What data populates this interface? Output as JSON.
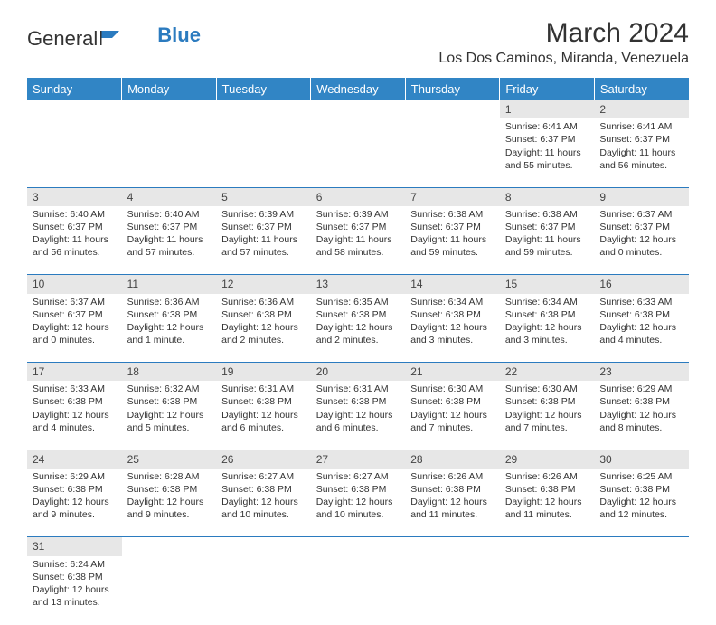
{
  "logo": {
    "part1": "General",
    "part2": "Blue"
  },
  "title": "March 2024",
  "location": "Los Dos Caminos, Miranda, Venezuela",
  "header_bg": "#3185c5",
  "header_fg": "#ffffff",
  "day_bg": "#e7e7e7",
  "border_color": "#2b7bbf",
  "days": [
    "Sunday",
    "Monday",
    "Tuesday",
    "Wednesday",
    "Thursday",
    "Friday",
    "Saturday"
  ],
  "weeks": [
    {
      "nums": [
        "",
        "",
        "",
        "",
        "",
        "1",
        "2"
      ],
      "cells": [
        null,
        null,
        null,
        null,
        null,
        {
          "sr": "Sunrise: 6:41 AM",
          "ss": "Sunset: 6:37 PM",
          "dl": "Daylight: 11 hours and 55 minutes."
        },
        {
          "sr": "Sunrise: 6:41 AM",
          "ss": "Sunset: 6:37 PM",
          "dl": "Daylight: 11 hours and 56 minutes."
        }
      ]
    },
    {
      "nums": [
        "3",
        "4",
        "5",
        "6",
        "7",
        "8",
        "9"
      ],
      "cells": [
        {
          "sr": "Sunrise: 6:40 AM",
          "ss": "Sunset: 6:37 PM",
          "dl": "Daylight: 11 hours and 56 minutes."
        },
        {
          "sr": "Sunrise: 6:40 AM",
          "ss": "Sunset: 6:37 PM",
          "dl": "Daylight: 11 hours and 57 minutes."
        },
        {
          "sr": "Sunrise: 6:39 AM",
          "ss": "Sunset: 6:37 PM",
          "dl": "Daylight: 11 hours and 57 minutes."
        },
        {
          "sr": "Sunrise: 6:39 AM",
          "ss": "Sunset: 6:37 PM",
          "dl": "Daylight: 11 hours and 58 minutes."
        },
        {
          "sr": "Sunrise: 6:38 AM",
          "ss": "Sunset: 6:37 PM",
          "dl": "Daylight: 11 hours and 59 minutes."
        },
        {
          "sr": "Sunrise: 6:38 AM",
          "ss": "Sunset: 6:37 PM",
          "dl": "Daylight: 11 hours and 59 minutes."
        },
        {
          "sr": "Sunrise: 6:37 AM",
          "ss": "Sunset: 6:37 PM",
          "dl": "Daylight: 12 hours and 0 minutes."
        }
      ]
    },
    {
      "nums": [
        "10",
        "11",
        "12",
        "13",
        "14",
        "15",
        "16"
      ],
      "cells": [
        {
          "sr": "Sunrise: 6:37 AM",
          "ss": "Sunset: 6:37 PM",
          "dl": "Daylight: 12 hours and 0 minutes."
        },
        {
          "sr": "Sunrise: 6:36 AM",
          "ss": "Sunset: 6:38 PM",
          "dl": "Daylight: 12 hours and 1 minute."
        },
        {
          "sr": "Sunrise: 6:36 AM",
          "ss": "Sunset: 6:38 PM",
          "dl": "Daylight: 12 hours and 2 minutes."
        },
        {
          "sr": "Sunrise: 6:35 AM",
          "ss": "Sunset: 6:38 PM",
          "dl": "Daylight: 12 hours and 2 minutes."
        },
        {
          "sr": "Sunrise: 6:34 AM",
          "ss": "Sunset: 6:38 PM",
          "dl": "Daylight: 12 hours and 3 minutes."
        },
        {
          "sr": "Sunrise: 6:34 AM",
          "ss": "Sunset: 6:38 PM",
          "dl": "Daylight: 12 hours and 3 minutes."
        },
        {
          "sr": "Sunrise: 6:33 AM",
          "ss": "Sunset: 6:38 PM",
          "dl": "Daylight: 12 hours and 4 minutes."
        }
      ]
    },
    {
      "nums": [
        "17",
        "18",
        "19",
        "20",
        "21",
        "22",
        "23"
      ],
      "cells": [
        {
          "sr": "Sunrise: 6:33 AM",
          "ss": "Sunset: 6:38 PM",
          "dl": "Daylight: 12 hours and 4 minutes."
        },
        {
          "sr": "Sunrise: 6:32 AM",
          "ss": "Sunset: 6:38 PM",
          "dl": "Daylight: 12 hours and 5 minutes."
        },
        {
          "sr": "Sunrise: 6:31 AM",
          "ss": "Sunset: 6:38 PM",
          "dl": "Daylight: 12 hours and 6 minutes."
        },
        {
          "sr": "Sunrise: 6:31 AM",
          "ss": "Sunset: 6:38 PM",
          "dl": "Daylight: 12 hours and 6 minutes."
        },
        {
          "sr": "Sunrise: 6:30 AM",
          "ss": "Sunset: 6:38 PM",
          "dl": "Daylight: 12 hours and 7 minutes."
        },
        {
          "sr": "Sunrise: 6:30 AM",
          "ss": "Sunset: 6:38 PM",
          "dl": "Daylight: 12 hours and 7 minutes."
        },
        {
          "sr": "Sunrise: 6:29 AM",
          "ss": "Sunset: 6:38 PM",
          "dl": "Daylight: 12 hours and 8 minutes."
        }
      ]
    },
    {
      "nums": [
        "24",
        "25",
        "26",
        "27",
        "28",
        "29",
        "30"
      ],
      "cells": [
        {
          "sr": "Sunrise: 6:29 AM",
          "ss": "Sunset: 6:38 PM",
          "dl": "Daylight: 12 hours and 9 minutes."
        },
        {
          "sr": "Sunrise: 6:28 AM",
          "ss": "Sunset: 6:38 PM",
          "dl": "Daylight: 12 hours and 9 minutes."
        },
        {
          "sr": "Sunrise: 6:27 AM",
          "ss": "Sunset: 6:38 PM",
          "dl": "Daylight: 12 hours and 10 minutes."
        },
        {
          "sr": "Sunrise: 6:27 AM",
          "ss": "Sunset: 6:38 PM",
          "dl": "Daylight: 12 hours and 10 minutes."
        },
        {
          "sr": "Sunrise: 6:26 AM",
          "ss": "Sunset: 6:38 PM",
          "dl": "Daylight: 12 hours and 11 minutes."
        },
        {
          "sr": "Sunrise: 6:26 AM",
          "ss": "Sunset: 6:38 PM",
          "dl": "Daylight: 12 hours and 11 minutes."
        },
        {
          "sr": "Sunrise: 6:25 AM",
          "ss": "Sunset: 6:38 PM",
          "dl": "Daylight: 12 hours and 12 minutes."
        }
      ]
    },
    {
      "nums": [
        "31",
        "",
        "",
        "",
        "",
        "",
        ""
      ],
      "cells": [
        {
          "sr": "Sunrise: 6:24 AM",
          "ss": "Sunset: 6:38 PM",
          "dl": "Daylight: 12 hours and 13 minutes."
        },
        null,
        null,
        null,
        null,
        null,
        null
      ]
    }
  ]
}
